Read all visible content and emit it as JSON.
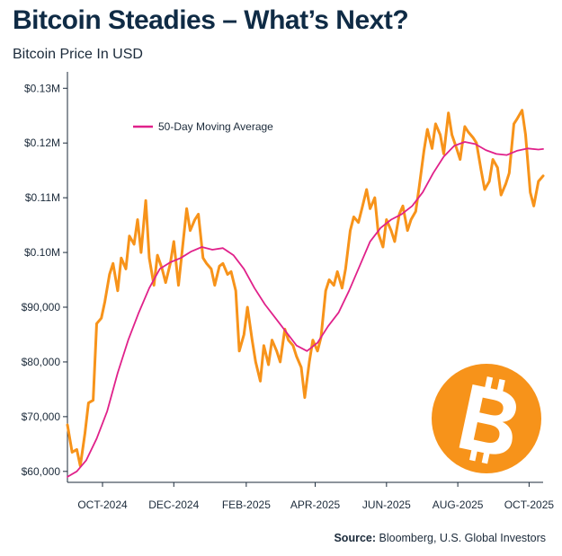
{
  "title": "Bitcoin Steadies – What’s Next?",
  "subtitle": "Bitcoin Price In USD",
  "source_label": "Source:",
  "source_text": "Bloomberg, U.S. Global Investors",
  "colors": {
    "price": "#f7931a",
    "ma": "#e0218a",
    "logo": "#f7931a",
    "title": "#0f2b45"
  },
  "logo_icon": "bitcoin-icon",
  "chart_data": {
    "type": "line",
    "ylim": [
      58000,
      133000
    ],
    "y_ticks": [
      {
        "value": 60000,
        "label": "$60,000"
      },
      {
        "value": 70000,
        "label": "$70,000"
      },
      {
        "value": 80000,
        "label": "$80,000"
      },
      {
        "value": 90000,
        "label": "$90,000"
      },
      {
        "value": 100000,
        "label": "$0.10M"
      },
      {
        "value": 110000,
        "label": "$0.11M"
      },
      {
        "value": 120000,
        "label": "$0.12M"
      },
      {
        "value": 130000,
        "label": "$0.13M"
      }
    ],
    "x_range": [
      "2024-09-15",
      "2025-10-27"
    ],
    "x_ticks": [
      {
        "date": "2024-10-15",
        "label": "OCT-2024"
      },
      {
        "date": "2024-12-15",
        "label": "DEC-2024"
      },
      {
        "date": "2025-02-15",
        "label": "FEB-2025"
      },
      {
        "date": "2025-04-15",
        "label": "APR-2025"
      },
      {
        "date": "2025-06-15",
        "label": "JUN-2025"
      },
      {
        "date": "2025-08-15",
        "label": "AUG-2025"
      },
      {
        "date": "2025-10-15",
        "label": "OCT-2025"
      }
    ],
    "series": [
      {
        "name": "",
        "style": "price",
        "points": [
          [
            "2024-09-15",
            68500
          ],
          [
            "2024-09-19",
            63500
          ],
          [
            "2024-09-23",
            64000
          ],
          [
            "2024-09-26",
            61000
          ],
          [
            "2024-09-30",
            67000
          ],
          [
            "2024-10-03",
            72500
          ],
          [
            "2024-10-07",
            73000
          ],
          [
            "2024-10-10",
            87000
          ],
          [
            "2024-10-14",
            88000
          ],
          [
            "2024-10-17",
            91000
          ],
          [
            "2024-10-21",
            96000
          ],
          [
            "2024-10-24",
            98000
          ],
          [
            "2024-10-28",
            93000
          ],
          [
            "2024-10-31",
            99000
          ],
          [
            "2024-11-04",
            97000
          ],
          [
            "2024-11-07",
            103000
          ],
          [
            "2024-11-11",
            101500
          ],
          [
            "2024-11-14",
            106000
          ],
          [
            "2024-11-17",
            100000
          ],
          [
            "2024-11-21",
            109500
          ],
          [
            "2024-11-24",
            99000
          ],
          [
            "2024-11-28",
            94000
          ],
          [
            "2024-12-01",
            99500
          ],
          [
            "2024-12-05",
            97000
          ],
          [
            "2024-12-08",
            94500
          ],
          [
            "2024-12-12",
            98000
          ],
          [
            "2024-12-15",
            102000
          ],
          [
            "2024-12-19",
            94000
          ],
          [
            "2024-12-22",
            100000
          ],
          [
            "2024-12-26",
            108000
          ],
          [
            "2024-12-29",
            104000
          ],
          [
            "2025-01-02",
            106000
          ],
          [
            "2025-01-05",
            107000
          ],
          [
            "2025-01-09",
            99000
          ],
          [
            "2025-01-12",
            98000
          ],
          [
            "2025-01-16",
            97000
          ],
          [
            "2025-01-19",
            94000
          ],
          [
            "2025-01-23",
            97500
          ],
          [
            "2025-01-26",
            98000
          ],
          [
            "2025-01-30",
            96000
          ],
          [
            "2025-02-02",
            96500
          ],
          [
            "2025-02-06",
            93000
          ],
          [
            "2025-02-09",
            82000
          ],
          [
            "2025-02-13",
            85000
          ],
          [
            "2025-02-16",
            90000
          ],
          [
            "2025-02-20",
            84000
          ],
          [
            "2025-02-23",
            80000
          ],
          [
            "2025-02-27",
            76500
          ],
          [
            "2025-03-02",
            83000
          ],
          [
            "2025-03-06",
            79500
          ],
          [
            "2025-03-09",
            84000
          ],
          [
            "2025-03-13",
            82000
          ],
          [
            "2025-03-16",
            80000
          ],
          [
            "2025-03-20",
            86000
          ],
          [
            "2025-03-23",
            84000
          ],
          [
            "2025-03-27",
            83000
          ],
          [
            "2025-03-30",
            81000
          ],
          [
            "2025-04-03",
            79000
          ],
          [
            "2025-04-06",
            73500
          ],
          [
            "2025-04-10",
            80000
          ],
          [
            "2025-04-13",
            84000
          ],
          [
            "2025-04-17",
            82000
          ],
          [
            "2025-04-20",
            84500
          ],
          [
            "2025-04-24",
            93000
          ],
          [
            "2025-04-27",
            95000
          ],
          [
            "2025-05-01",
            94000
          ],
          [
            "2025-05-04",
            96500
          ],
          [
            "2025-05-08",
            93500
          ],
          [
            "2025-05-11",
            97000
          ],
          [
            "2025-05-15",
            104000
          ],
          [
            "2025-05-18",
            106500
          ],
          [
            "2025-05-22",
            105500
          ],
          [
            "2025-05-25",
            108000
          ],
          [
            "2025-05-29",
            111500
          ],
          [
            "2025-06-01",
            108000
          ],
          [
            "2025-06-05",
            110000
          ],
          [
            "2025-06-08",
            103500
          ],
          [
            "2025-06-12",
            101000
          ],
          [
            "2025-06-15",
            106000
          ],
          [
            "2025-06-19",
            104000
          ],
          [
            "2025-06-22",
            102000
          ],
          [
            "2025-06-26",
            107000
          ],
          [
            "2025-06-29",
            108500
          ],
          [
            "2025-07-03",
            104000
          ],
          [
            "2025-07-06",
            106000
          ],
          [
            "2025-07-10",
            107500
          ],
          [
            "2025-07-13",
            112000
          ],
          [
            "2025-07-17",
            118500
          ],
          [
            "2025-07-20",
            122500
          ],
          [
            "2025-07-24",
            119000
          ],
          [
            "2025-07-27",
            123500
          ],
          [
            "2025-07-31",
            121500
          ],
          [
            "2025-08-03",
            118000
          ],
          [
            "2025-08-07",
            125500
          ],
          [
            "2025-08-10",
            121500
          ],
          [
            "2025-08-14",
            119000
          ],
          [
            "2025-08-17",
            117000
          ],
          [
            "2025-08-21",
            123000
          ],
          [
            "2025-08-24",
            122000
          ],
          [
            "2025-08-28",
            121000
          ],
          [
            "2025-08-31",
            120000
          ],
          [
            "2025-09-04",
            115000
          ],
          [
            "2025-09-07",
            111500
          ],
          [
            "2025-09-11",
            113000
          ],
          [
            "2025-09-14",
            117000
          ],
          [
            "2025-09-18",
            115500
          ],
          [
            "2025-09-21",
            110500
          ],
          [
            "2025-09-25",
            112500
          ],
          [
            "2025-09-28",
            114500
          ],
          [
            "2025-10-02",
            123500
          ],
          [
            "2025-10-05",
            124500
          ],
          [
            "2025-10-09",
            126000
          ],
          [
            "2025-10-12",
            121500
          ],
          [
            "2025-10-16",
            111000
          ],
          [
            "2025-10-19",
            108500
          ],
          [
            "2025-10-23",
            113000
          ],
          [
            "2025-10-27",
            114000
          ]
        ]
      },
      {
        "name": "50-Day Moving Average",
        "style": "ma",
        "points": [
          [
            "2024-09-15",
            59000
          ],
          [
            "2024-09-23",
            60000
          ],
          [
            "2024-10-01",
            62000
          ],
          [
            "2024-10-10",
            66000
          ],
          [
            "2024-10-19",
            71000
          ],
          [
            "2024-10-28",
            78000
          ],
          [
            "2024-11-06",
            84000
          ],
          [
            "2024-11-15",
            89000
          ],
          [
            "2024-11-24",
            93500
          ],
          [
            "2024-12-03",
            97000
          ],
          [
            "2024-12-12",
            98200
          ],
          [
            "2024-12-21",
            99000
          ],
          [
            "2024-12-30",
            100200
          ],
          [
            "2025-01-08",
            101000
          ],
          [
            "2025-01-17",
            100500
          ],
          [
            "2025-01-26",
            100800
          ],
          [
            "2025-02-04",
            99500
          ],
          [
            "2025-02-13",
            97000
          ],
          [
            "2025-02-22",
            93500
          ],
          [
            "2025-03-03",
            90500
          ],
          [
            "2025-03-12",
            88000
          ],
          [
            "2025-03-21",
            85500
          ],
          [
            "2025-03-30",
            83000
          ],
          [
            "2025-04-08",
            82000
          ],
          [
            "2025-04-17",
            83500
          ],
          [
            "2025-04-26",
            86500
          ],
          [
            "2025-05-05",
            89000
          ],
          [
            "2025-05-14",
            93000
          ],
          [
            "2025-05-23",
            97500
          ],
          [
            "2025-06-01",
            102000
          ],
          [
            "2025-06-10",
            104500
          ],
          [
            "2025-06-19",
            106000
          ],
          [
            "2025-06-28",
            107000
          ],
          [
            "2025-07-07",
            108500
          ],
          [
            "2025-07-16",
            111000
          ],
          [
            "2025-07-25",
            114500
          ],
          [
            "2025-08-03",
            117500
          ],
          [
            "2025-08-12",
            119500
          ],
          [
            "2025-08-21",
            120200
          ],
          [
            "2025-08-30",
            119800
          ],
          [
            "2025-09-08",
            118700
          ],
          [
            "2025-09-17",
            118000
          ],
          [
            "2025-09-26",
            117800
          ],
          [
            "2025-10-05",
            118600
          ],
          [
            "2025-10-14",
            119000
          ],
          [
            "2025-10-23",
            118800
          ],
          [
            "2025-10-27",
            118900
          ]
        ]
      }
    ],
    "legend": {
      "position": "top-left"
    }
  }
}
